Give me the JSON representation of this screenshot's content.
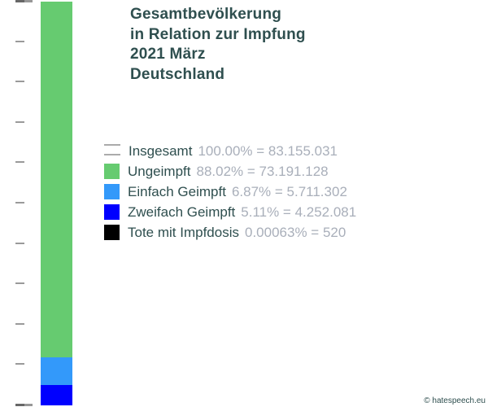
{
  "title": {
    "lines": [
      "Gesamtbevölkerung",
      "in Relation zur Impfung",
      "2021 März",
      "Deutschland"
    ],
    "color": "#2F4F4F"
  },
  "footer": {
    "text": "© hatespeech.eu",
    "color": "#2F4F4F"
  },
  "colors": {
    "label_text": "#2F4F4F",
    "value_text": "#A9AFBA",
    "tick": "#9A9A9A",
    "insgesamt_line": "#ABABAB",
    "ungeimpft": "#66CB70",
    "einfach_geimpft": "#3399FA",
    "zweifach_geimpft": "#0000FF",
    "tote_mit_impfdosis": "#000000"
  },
  "legend": {
    "items": [
      {
        "label": "Insgesamt",
        "value_text": "100.00% = 83.155.031",
        "marker": "double-line",
        "color": "#ABABAB"
      },
      {
        "label": "Ungeimpft",
        "value_text": "88.02% = 73.191.128",
        "marker": "square",
        "color": "#66CB70"
      },
      {
        "label": "Einfach Geimpft",
        "value_text": "6.87% = 5.711.302",
        "marker": "square",
        "color": "#3399FA"
      },
      {
        "label": "Zweifach Geimpft",
        "value_text": "5.11% = 4.252.081",
        "marker": "square",
        "color": "#0000FF"
      },
      {
        "label": "Tote mit Impfdosis",
        "value_text": "0.00063% = 520",
        "marker": "square",
        "color": "#000000"
      }
    ]
  },
  "chart_data": {
    "type": "bar",
    "stacked": true,
    "orientation": "vertical",
    "title": "Gesamtbevölkerung in Relation zur Impfung 2021 März Deutschland",
    "categories": [
      "Deutschland 2021 März"
    ],
    "series": [
      {
        "name": "Insgesamt",
        "percent": 100.0,
        "value": 83155031,
        "color": "#ABABAB",
        "marker": "line-at-100"
      },
      {
        "name": "Ungeimpft",
        "percent": 88.02,
        "value": 73191128,
        "color": "#66CB70"
      },
      {
        "name": "Einfach Geimpft",
        "percent": 6.87,
        "value": 5711302,
        "color": "#3399FA"
      },
      {
        "name": "Zweifach Geimpft",
        "percent": 5.11,
        "value": 4252081,
        "color": "#0000FF"
      },
      {
        "name": "Tote mit Impfdosis",
        "percent": 0.00063,
        "value": 520,
        "color": "#000000"
      }
    ],
    "xlabel": "",
    "ylabel": "",
    "ylim": [
      0,
      100
    ],
    "y_ticks_percent": [
      0,
      10,
      20,
      30,
      40,
      50,
      60,
      70,
      80,
      90,
      100
    ],
    "tick_labels_visible": false,
    "grid": false,
    "legend_position": "center-right"
  }
}
